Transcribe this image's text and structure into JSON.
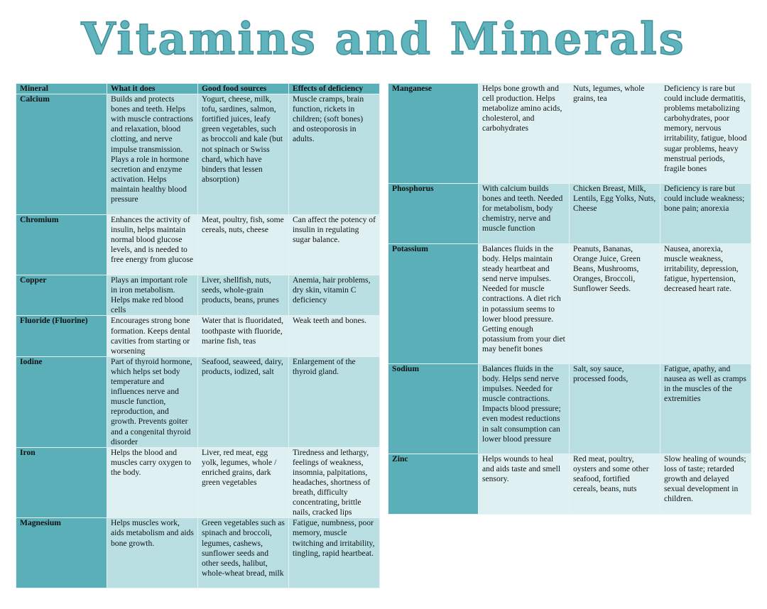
{
  "title": "Vitamins and Minerals",
  "colors": {
    "title": "#5fb3bd",
    "header": "#5aafb8",
    "row_dark": "#b9dfe3",
    "row_light": "#dff0f2"
  },
  "headers": [
    "Mineral",
    "What it does",
    "Good food sources",
    "Effects of deficiency"
  ],
  "left_rows": [
    [
      "Calcium",
      "Builds and protects bones and teeth. Helps with muscle contractions and relaxation, blood clotting, and nerve impulse transmission. Plays a role in hormone secretion and enzyme activation. Helps maintain healthy blood pressure",
      "Yogurt, cheese, milk, tofu, sardines, salmon, fortified juices, leafy green vegetables, such as broccoli and kale (but not spinach or Swiss chard, which have binders that lessen absorption)",
      "Muscle cramps, brain function, rickets in children; (soft bones) and osteoporosis in adults."
    ],
    [
      "Chromium",
      "Enhances the activity of insulin, helps maintain normal blood glucose levels, and is needed to free energy from glucose",
      "Meat, poultry, fish, some cereals, nuts, cheese",
      "Can affect the potency of insulin in regulating sugar balance."
    ],
    [
      "Copper",
      "Plays an important role in iron metabolism. Helps make red blood cells",
      "Liver, shellfish, nuts, seeds, whole-grain products, beans, prunes",
      "Anemia, hair problems, dry skin, vitamin C deficiency"
    ],
    [
      "Fluoride (Fluorine)",
      "Encourages strong bone formation. Keeps dental cavities from starting or worsening",
      "Water that is fluoridated, toothpaste with fluoride, marine fish, teas",
      "Weak teeth and bones."
    ],
    [
      "Iodine",
      "Part of thyroid hormone, which helps set body temperature and influences nerve and muscle function, reproduction, and growth. Prevents goiter and a congenital thyroid disorder",
      "Seafood, seaweed, dairy, products, iodized, salt",
      "Enlargement of the thyroid gland."
    ],
    [
      "Iron",
      "Helps the blood and muscles carry oxygen to the body.",
      "Liver, red meat, egg yolk, legumes, whole / enriched grains, dark green vegetables",
      "Tiredness and lethargy, feelings of weakness, insomnia, palpitations, headaches, shortness of breath, difficulty concentrating, brittle nails, cracked lips"
    ],
    [
      "Magnesium",
      "Helps muscles work, aids metabolism and aids bone growth.",
      "Green vegetables such as spinach and broccoli, legumes, cashews, sunflower seeds and other seeds, halibut, whole-wheat bread, milk",
      "Fatigue, numbness, poor memory, muscle twitching and irritability, tingling, rapid heartbeat."
    ]
  ],
  "right_rows": [
    [
      "Manganese",
      "Helps bone growth and cell production. Helps metabolize amino acids, cholesterol, and carbohydrates",
      "Nuts, legumes, whole grains, tea",
      "Deficiency is rare but could include dermatitis, problems metabolizing carbohydrates, poor memory, nervous irritability, fatigue, blood sugar problems, heavy menstrual periods, fragile bones"
    ],
    [
      "Phosphorus",
      "With calcium builds bones and teeth. Needed for metabolism, body chemistry, nerve and muscle function",
      "Chicken Breast, Milk, Lentils, Egg Yolks, Nuts, Cheese",
      "Deficiency is rare but could include weakness; bone pain; anorexia"
    ],
    [
      "Potassium",
      "Balances fluids in the body. Helps maintain steady heartbeat and send nerve impulses. Needed for muscle contractions. A diet rich in potassium seems to lower blood pressure. Getting enough potassium from your diet may benefit bones",
      "Peanuts, Bananas, Orange Juice, Green Beans, Mushrooms, Oranges, Broccoli, Sunflower Seeds.",
      "Nausea, anorexia, muscle weakness, irritability, depression, fatigue, hypertension, decreased heart rate."
    ],
    [
      "Sodium",
      "Balances fluids in the body. Helps send nerve impulses. Needed for muscle contractions. Impacts blood pressure; even modest reductions in salt consumption can lower blood pressure",
      "Salt, soy sauce, processed foods,",
      "Fatigue, apathy, and nausea as well as cramps in the muscles of the extremities"
    ],
    [
      "Zinc",
      "Helps wounds to heal and aids taste and smell sensory.",
      "Red meat, poultry, oysters and some other seafood, fortified cereals, beans, nuts",
      "Slow healing of wounds; loss of taste; retarded growth and delayed sexual development in children."
    ]
  ]
}
